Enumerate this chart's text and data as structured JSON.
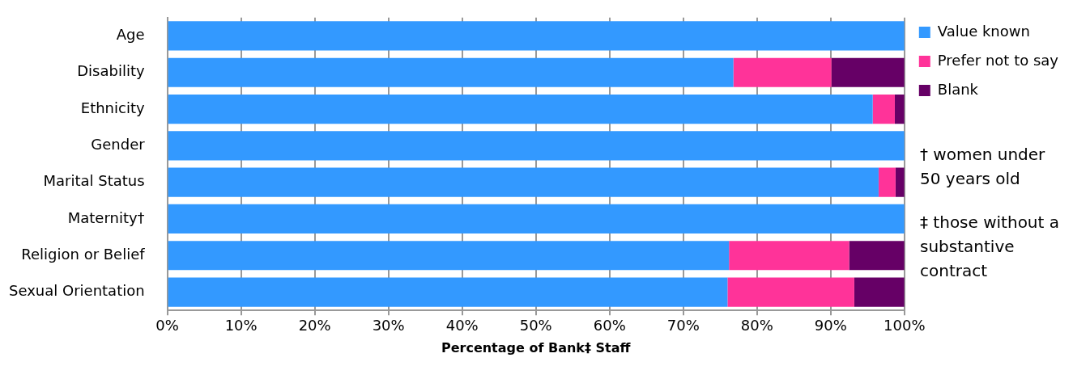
{
  "chart_data": {
    "type": "bar",
    "orientation": "horizontal",
    "stacked": true,
    "categories": [
      "Age",
      "Disability",
      "Ethnicity",
      "Gender",
      "Marital Status",
      "Maternity†",
      "Religion or Belief",
      "Sexual Orientation"
    ],
    "series": [
      {
        "name": "Value known",
        "color": "#3399ff",
        "values": [
          100,
          76.8,
          95.7,
          100,
          96.5,
          100,
          76.2,
          76.0
        ]
      },
      {
        "name": "Prefer not to say",
        "color": "#ff3399",
        "values": [
          0,
          13.3,
          3.0,
          0,
          2.3,
          0,
          16.3,
          17.2
        ]
      },
      {
        "name": "Blank",
        "color": "#660066",
        "values": [
          0,
          9.9,
          1.3,
          0,
          1.2,
          0,
          7.5,
          6.8
        ]
      }
    ],
    "xlabel": "Percentage of Bank‡ Staff",
    "xlim": [
      0,
      100
    ],
    "xticks": [
      {
        "value": 0,
        "label": "0%"
      },
      {
        "value": 10,
        "label": "10%"
      },
      {
        "value": 20,
        "label": "20%"
      },
      {
        "value": 30,
        "label": "30%"
      },
      {
        "value": 40,
        "label": "40%"
      },
      {
        "value": 50,
        "label": "50%"
      },
      {
        "value": 60,
        "label": "60%"
      },
      {
        "value": 70,
        "label": "70%"
      },
      {
        "value": 80,
        "label": "80%"
      },
      {
        "value": 90,
        "label": "90%"
      },
      {
        "value": 100,
        "label": "100%"
      }
    ],
    "grid": "x",
    "legend": "top right",
    "annotations": [
      "† women under 50 years old",
      "‡ those without a substantive contract"
    ]
  }
}
